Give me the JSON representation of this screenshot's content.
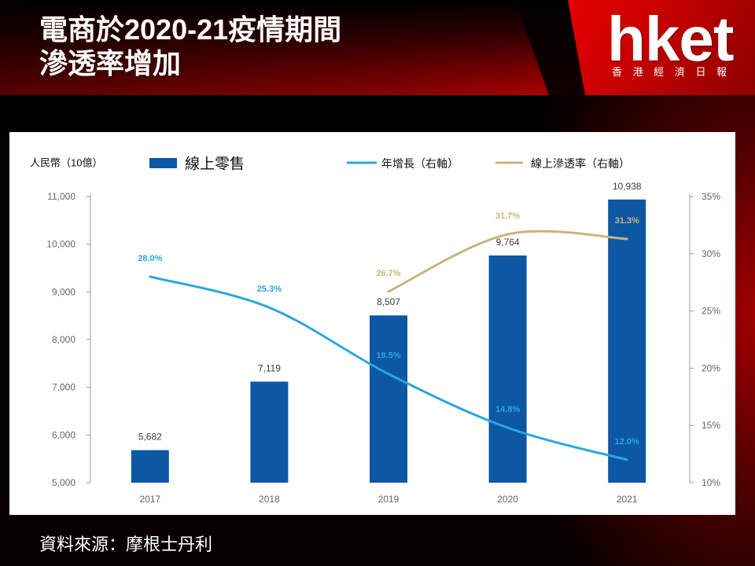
{
  "header": {
    "title_line1": "電商於2020-21疫情期間",
    "title_line2": "滲透率增加"
  },
  "logo": {
    "wordmark": "hket",
    "tagline": "香 港 經 濟 日 報"
  },
  "chart_data": {
    "type": "bar",
    "categories": [
      "2017",
      "2018",
      "2019",
      "2020",
      "2021"
    ],
    "left_axis": {
      "label": "人民幣（10億）",
      "ylim": [
        5000,
        11000
      ],
      "ticks": [
        5000,
        6000,
        7000,
        8000,
        9000,
        10000,
        11000
      ],
      "tick_labels": [
        "5,000",
        "6,000",
        "7,000",
        "8,000",
        "9,000",
        "10,000",
        "11,000"
      ]
    },
    "right_axis": {
      "ylim": [
        10,
        35
      ],
      "ticks": [
        10,
        15,
        20,
        25,
        30,
        35
      ],
      "tick_labels": [
        "10%",
        "15%",
        "20%",
        "25%",
        "30%",
        "35%"
      ]
    },
    "series": [
      {
        "name": "線上零售",
        "type": "bar",
        "axis": "left",
        "values": [
          5682,
          7119,
          8507,
          9764,
          10938
        ],
        "labels": [
          "5,682",
          "7,119",
          "8,507",
          "9,764",
          "10,938"
        ],
        "color": "#0d57a5"
      },
      {
        "name": "年增長（右軸）",
        "type": "line",
        "axis": "right",
        "values": [
          28.0,
          25.3,
          19.5,
          14.8,
          12.0
        ],
        "labels": [
          "28.0%",
          "25.3%",
          "19.5%",
          "14.8%",
          "12.0%"
        ],
        "color": "#2aa7df"
      },
      {
        "name": "線上滲透率（右軸）",
        "type": "line",
        "axis": "right",
        "values": [
          null,
          null,
          26.7,
          31.7,
          31.3
        ],
        "labels": [
          null,
          null,
          "26.7%",
          "31.7%",
          "31.3%"
        ],
        "color": "#c9b47c"
      }
    ],
    "legend_position": "top",
    "grid": false
  },
  "footer": {
    "source": "資料來源：摩根士丹利"
  },
  "colors": {
    "brand_red": "#d40000",
    "panel_background": "#ffffff"
  }
}
